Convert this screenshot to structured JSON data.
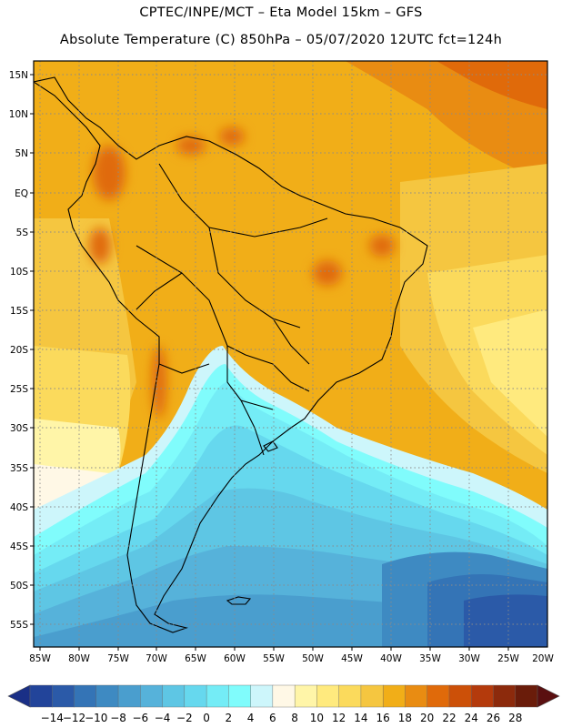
{
  "header": {
    "title_line1": "CPTEC/INPE/MCT  –   Eta Model 15km  –  GFS",
    "title_line2": "Absolute Temperature (C) 850hPa – 05/07/2020 12UTC fct=124h"
  },
  "map": {
    "lat_labels": [
      "15N",
      "10N",
      "5N",
      "EQ",
      "5S",
      "10S",
      "15S",
      "20S",
      "25S",
      "30S",
      "35S",
      "40S",
      "45S",
      "50S",
      "55S"
    ],
    "lon_labels": [
      "85W",
      "80W",
      "75W",
      "70W",
      "65W",
      "60W",
      "55W",
      "50W",
      "45W",
      "40W",
      "35W",
      "30W",
      "25W",
      "20W"
    ]
  },
  "colorbar": {
    "labels": [
      "-14",
      "-12",
      "-10",
      "-8",
      "-6",
      "-4",
      "-2",
      "0",
      "2",
      "4",
      "6",
      "8",
      "10",
      "12",
      "14",
      "16",
      "18",
      "20",
      "22",
      "24",
      "26",
      "28"
    ],
    "colors": [
      "#22449a",
      "#2b5aa8",
      "#3474b6",
      "#3e8ac2",
      "#4a9ece",
      "#56b2da",
      "#5ec6e4",
      "#66d8ee",
      "#74ecf6",
      "#80fcfc",
      "#cdf6fb",
      "#fff8e6",
      "#fff5a8",
      "#ffea7e",
      "#fbda5c",
      "#f5c640",
      "#f1ae18",
      "#e98c12",
      "#e06a0a",
      "#cc5008",
      "#b43a0c",
      "#8c2a0c",
      "#6a1c0a"
    ]
  }
}
